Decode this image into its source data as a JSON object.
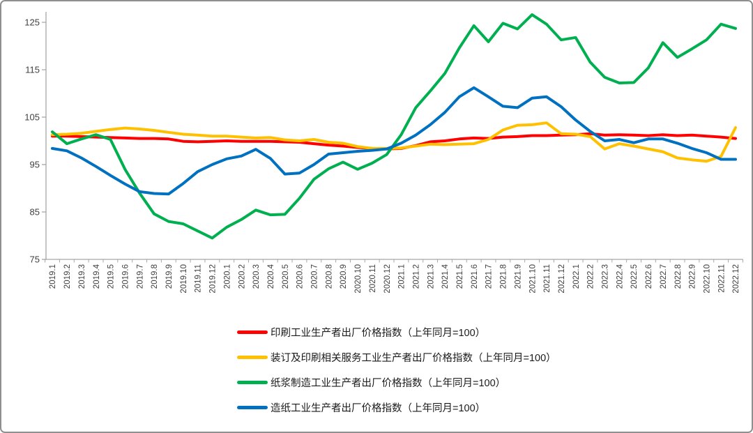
{
  "chart_data": {
    "type": "line",
    "title": "",
    "xlabel": "",
    "ylabel": "",
    "ylim": [
      75,
      125
    ],
    "yticks": [
      75,
      85,
      95,
      105,
      115,
      125
    ],
    "grid": false,
    "legend_position": "bottom-left",
    "axis_color": "#a6a6a6",
    "tick_label_color": "#404040",
    "x": [
      "2019.1",
      "2019.2",
      "2019.3",
      "2019.4",
      "2019.5",
      "2019.6",
      "2019.7",
      "2019.8",
      "2019.9",
      "2019.10",
      "2019.11",
      "2019.12",
      "2020.1",
      "2020.2",
      "2020.3",
      "2020.4",
      "2020.5",
      "2020.6",
      "2020.7",
      "2020.8",
      "2020.9",
      "2020.10",
      "2020.11",
      "2020.12",
      "2021.1",
      "2021.2",
      "2021.3",
      "2021.4",
      "2021.5",
      "2021.6",
      "2021.7",
      "2021.8",
      "2021.9",
      "2021.10",
      "2021.11",
      "2021.12",
      "2022.1",
      "2022.2",
      "2022.3",
      "2022.4",
      "2022.5",
      "2022.6",
      "2022.7",
      "2022.8",
      "2022.9",
      "2022.10",
      "2022.11",
      "2022.12"
    ],
    "series": [
      {
        "name": "印刷工业生产者出厂价格指数（上年同月=100）",
        "color": "#ff0000",
        "values": [
          101.0,
          101.0,
          100.9,
          100.8,
          100.7,
          100.6,
          100.5,
          100.5,
          100.4,
          99.9,
          99.8,
          99.9,
          100.0,
          99.9,
          99.9,
          99.9,
          99.8,
          99.7,
          99.4,
          99.1,
          98.9,
          98.6,
          98.4,
          98.3,
          98.4,
          99.0,
          99.8,
          100.0,
          100.4,
          100.6,
          100.5,
          100.8,
          100.9,
          101.1,
          101.1,
          101.2,
          101.3,
          101.5,
          101.2,
          101.3,
          101.2,
          101.1,
          101.3,
          101.1,
          101.2,
          101.0,
          100.8,
          100.5
        ]
      },
      {
        "name": "装订及印刷相关服务工业生产者出厂价格指数（上年同月=100）",
        "color": "#ffc000",
        "values": [
          101.3,
          101.4,
          101.6,
          102.0,
          102.4,
          102.7,
          102.5,
          102.2,
          101.8,
          101.4,
          101.2,
          101.0,
          101.0,
          100.8,
          100.6,
          100.7,
          100.2,
          100.0,
          100.3,
          99.7,
          99.5,
          98.8,
          98.4,
          98.4,
          98.5,
          98.9,
          99.3,
          99.2,
          99.3,
          99.4,
          100.3,
          102.3,
          103.3,
          103.4,
          103.8,
          101.5,
          101.4,
          100.9,
          98.3,
          99.4,
          98.9,
          98.3,
          97.7,
          96.4,
          96.0,
          95.7,
          96.7,
          102.8
        ]
      },
      {
        "name": "纸浆制造工业生产者出厂价格指数（上年同月=100）",
        "color": "#00b050",
        "values": [
          101.9,
          99.4,
          100.4,
          101.3,
          100.3,
          94.0,
          89.0,
          84.6,
          83.0,
          82.5,
          81.0,
          79.5,
          81.8,
          83.4,
          85.4,
          84.4,
          84.5,
          87.9,
          91.9,
          94.1,
          95.5,
          94.0,
          95.3,
          97.1,
          101.3,
          107.0,
          110.5,
          114.2,
          119.6,
          124.3,
          120.9,
          124.8,
          123.6,
          126.6,
          124.6,
          121.3,
          121.8,
          116.6,
          113.4,
          112.2,
          112.3,
          115.4,
          120.7,
          117.6,
          119.4,
          121.3,
          124.6,
          123.7
        ]
      },
      {
        "name": "造纸工业生产者出厂价格指数（上年同月=100）",
        "color": "#0070c0",
        "values": [
          98.4,
          97.9,
          96.4,
          94.6,
          92.7,
          90.9,
          89.3,
          88.9,
          88.8,
          91.0,
          93.5,
          95.0,
          96.2,
          96.8,
          98.2,
          96.3,
          93.0,
          93.2,
          95.0,
          97.2,
          97.5,
          97.8,
          98.0,
          98.3,
          99.5,
          101.2,
          103.4,
          106.0,
          109.3,
          111.2,
          109.3,
          107.3,
          107.0,
          109.0,
          109.3,
          107.2,
          104.4,
          102.0,
          100.0,
          100.3,
          99.6,
          100.4,
          100.4,
          99.5,
          98.4,
          97.5,
          96.1,
          96.1
        ]
      }
    ]
  }
}
